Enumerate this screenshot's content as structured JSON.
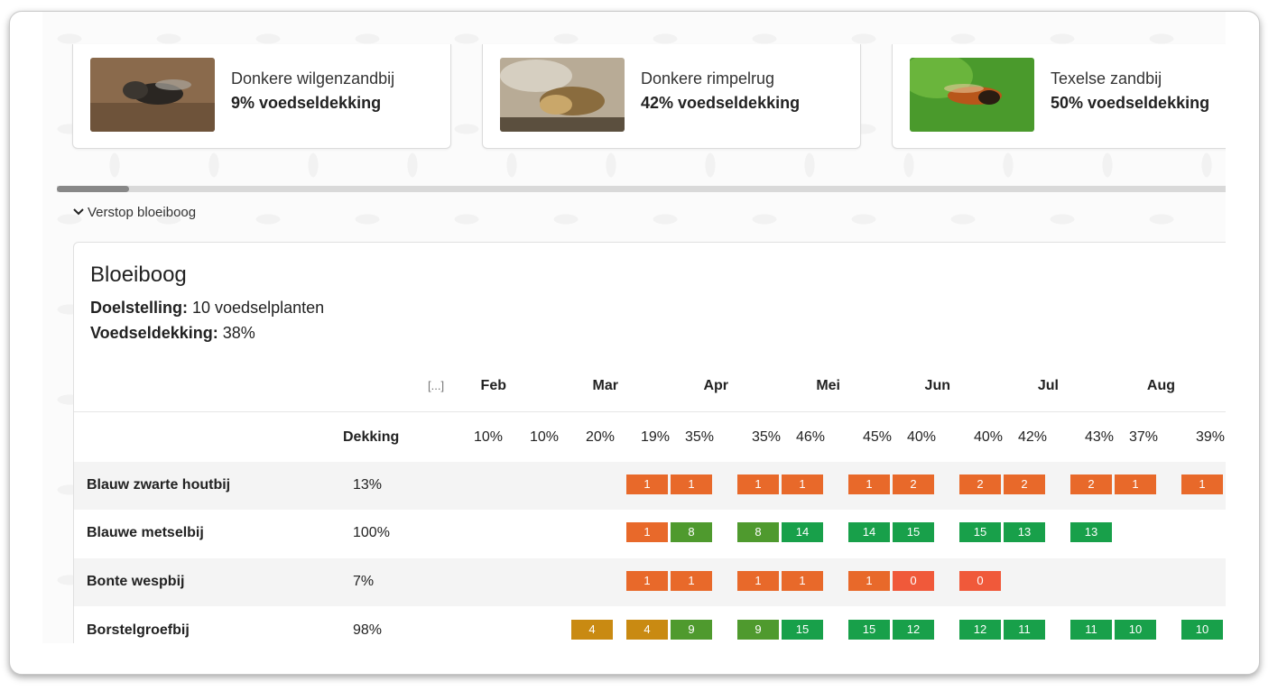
{
  "cards": [
    {
      "name": "Donkere wilgenzandbij",
      "coverage": "9% voedseldekking",
      "image": "bee-photo-dark-sand"
    },
    {
      "name": "Donkere rimpelrug",
      "coverage": "42% voedseldekking",
      "image": "bee-photo-stone"
    },
    {
      "name": "Texelse zandbij",
      "coverage": "50% voedseldekking",
      "image": "bee-photo-green-leaf"
    }
  ],
  "toggle_label": "Verstop bloeiboog",
  "panel": {
    "title": "Bloeiboog",
    "target_label": "Doelstelling:",
    "target_value": " 10 voedselplanten",
    "coverage_label": "Voedseldekking:",
    "coverage_value": " 38%"
  },
  "table": {
    "ellipsis": "[...]",
    "months": [
      "Feb",
      "Mar",
      "Apr",
      "Mei",
      "Jun",
      "Jul",
      "Aug"
    ],
    "dekking_header": "Dekking",
    "percents": [
      "10%",
      "10%",
      "20%",
      "19%",
      "35%",
      "35%",
      "46%",
      "45%",
      "40%",
      "40%",
      "42%",
      "43%",
      "37%",
      "39%"
    ],
    "rows": [
      {
        "name": "Blauw zwarte houtbij",
        "dekking": "13%",
        "cells": [
          null,
          null,
          null,
          "1",
          "1",
          "1",
          "1",
          "1",
          "2",
          "2",
          "2",
          "2",
          "1",
          "1"
        ]
      },
      {
        "name": "Blauwe metselbij",
        "dekking": "100%",
        "cells": [
          null,
          null,
          null,
          "1",
          "8",
          "8",
          "14",
          "14",
          "15",
          "15",
          "13",
          "13",
          null,
          null
        ]
      },
      {
        "name": "Bonte wespbij",
        "dekking": "7%",
        "cells": [
          null,
          null,
          null,
          "1",
          "1",
          "1",
          "1",
          "1",
          "0",
          "0",
          null,
          null,
          null,
          null
        ]
      },
      {
        "name": "Borstelgroefbij",
        "dekking": "98%",
        "cells": [
          null,
          null,
          "4",
          "4",
          "9",
          "9",
          "15",
          "15",
          "12",
          "12",
          "11",
          "11",
          "10",
          "10"
        ]
      }
    ]
  },
  "colors": {
    "orange": "#e8692a",
    "red": "#f0593a",
    "mustard": "#c98a12",
    "olive_green": "#4f9a2e",
    "green": "#18a04a"
  }
}
